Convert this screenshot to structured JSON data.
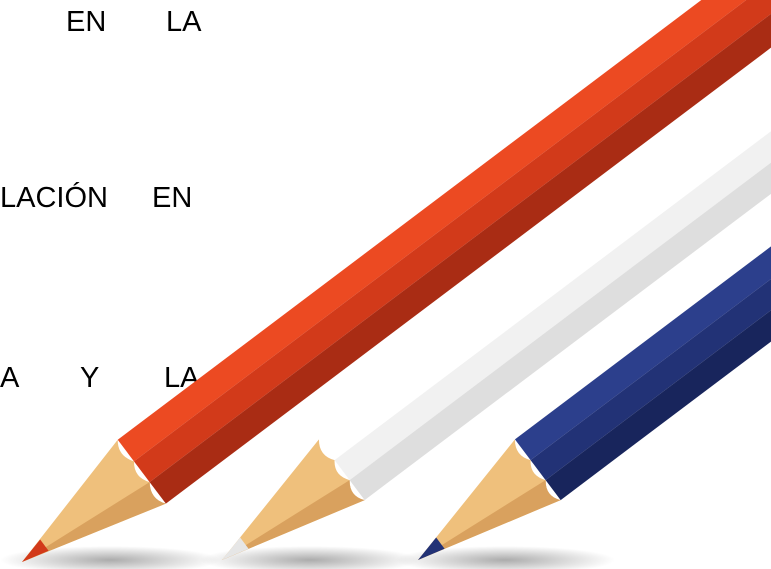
{
  "lines": [
    {
      "words": [
        "EN",
        "LA"
      ]
    },
    {
      "words": [
        "LACIÓN",
        "EN"
      ]
    },
    {
      "words": [
        "A",
        "Y",
        "LA"
      ]
    }
  ]
}
